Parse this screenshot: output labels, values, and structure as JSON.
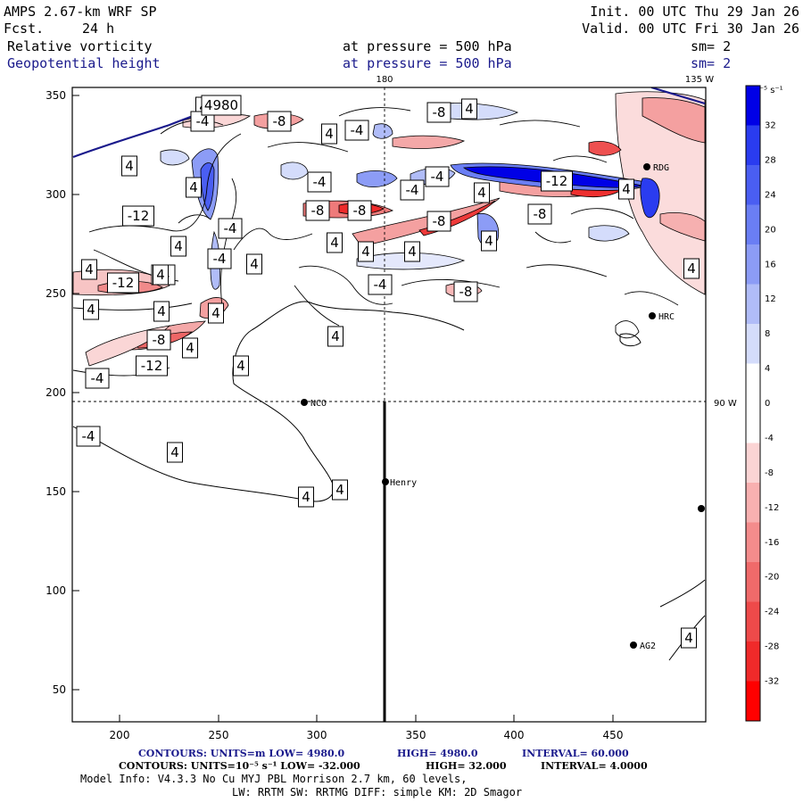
{
  "header": {
    "model": "AMPS 2.67-km WRF SP",
    "fcst_label": "Fcst.",
    "fcst_value": "24 h",
    "init": "Init. 00 UTC Thu 29 Jan 26",
    "valid": "Valid. 00 UTC Fri 30 Jan 26",
    "field1_name": "Relative vorticity",
    "field1_level": "at pressure =  500 hPa",
    "field1_sm": "sm= 2",
    "field2_name": "Geopotential height",
    "field2_level": "at pressure =  500 hPa",
    "field2_sm": "sm= 2"
  },
  "map": {
    "meridian_labels": [
      "180",
      "135 W",
      "90 W"
    ],
    "x_ticks": [
      "200",
      "250",
      "300",
      "350",
      "400",
      "450"
    ],
    "y_ticks": [
      "350",
      "300",
      "250",
      "200",
      "150",
      "100",
      "50"
    ],
    "stations": [
      {
        "id": "rdg",
        "label": "RDG"
      },
      {
        "id": "hrc",
        "label": "HRC"
      },
      {
        "id": "nco",
        "label": "NCO"
      },
      {
        "id": "henry",
        "label": "Henry"
      },
      {
        "id": "ag2",
        "label": "AG2"
      },
      {
        "id": "edge",
        "label": ""
      }
    ],
    "contour_labels": [
      "4",
      "-4",
      "4980",
      "-8",
      "4",
      "-4",
      "-8",
      "4",
      "4",
      "-4",
      "4",
      "-4",
      "-4",
      "-12",
      "4",
      "-8",
      "-8",
      "-8",
      "-12",
      "4",
      "4",
      "4",
      "-4",
      "-4",
      "-4",
      "4",
      "-8",
      "4",
      "4",
      "4",
      "4",
      "-4",
      "4",
      "-12",
      "4",
      "4",
      "-8",
      "4",
      "-8",
      "-12",
      "4",
      "4",
      "4",
      "-4",
      "-4",
      "4",
      "4",
      "4",
      "4",
      "4"
    ]
  },
  "colorbar": {
    "units": "10⁻⁵ s⁻¹",
    "ticks": [
      "32",
      "28",
      "24",
      "20",
      "16",
      "12",
      "8",
      "4",
      "0",
      "-4",
      "-8",
      "-12",
      "-16",
      "-20",
      "-24",
      "-28",
      "-32"
    ],
    "colors": [
      "#0000e6",
      "#2a3cf0",
      "#4a5ef2",
      "#6a7ef4",
      "#8c9cf6",
      "#b0bcf8",
      "#d4dcfb",
      "#ffffff",
      "#ffffff",
      "#fbd4d4",
      "#f8b0b0",
      "#f48c8c",
      "#f06a6a",
      "#ee4a4a",
      "#f02a2a",
      "#ff0000"
    ]
  },
  "footer": {
    "line1_a": "CONTOURS:  UNITS=m  LOW=  4980.0",
    "line1_b": "HIGH=  4980.0",
    "line1_c": "INTERVAL=   60.000",
    "line2_a": "CONTOURS:  UNITS=10⁻⁵ s⁻¹  LOW=  -32.000",
    "line2_b": "HIGH=  32.000",
    "line2_c": "INTERVAL=   4.0000",
    "line3": "Model Info: V4.3.3    No Cu    MYJ PBL  Morrison          2.7 km,  60 levels,",
    "line4": "LW: RRTM SW: RRTMG   DIFF: simple KM: 2D Smagor"
  },
  "colors": {
    "geopotential": "#1a1a8c",
    "positive": "#3344dd",
    "negative": "#ee3333"
  }
}
